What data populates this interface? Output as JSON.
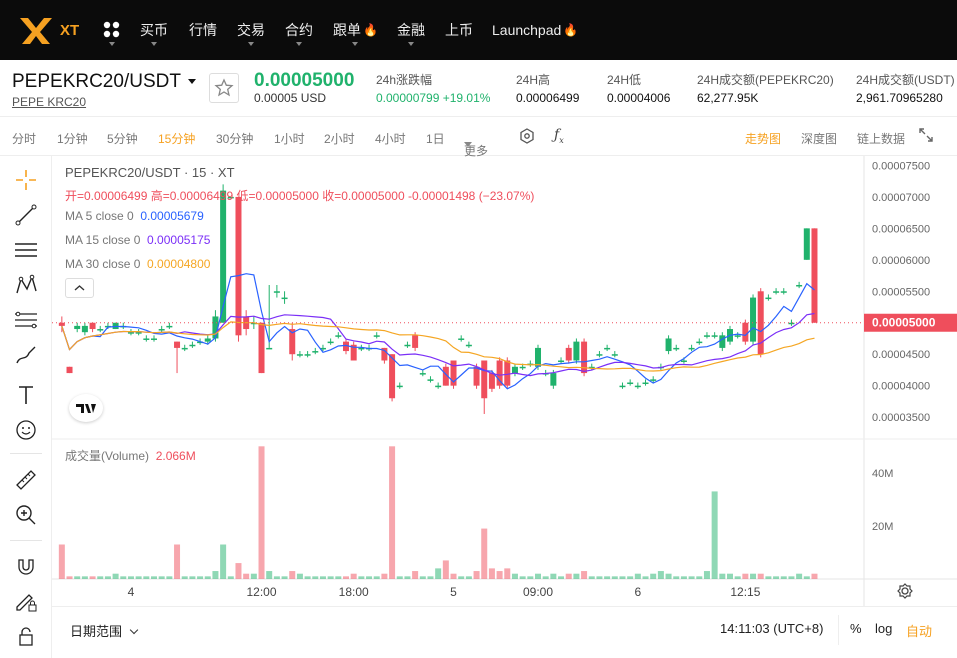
{
  "nav": {
    "brand": "XT",
    "items": [
      {
        "label": "买币",
        "has_dropdown": true
      },
      {
        "label": "行情",
        "has_dropdown": false
      },
      {
        "label": "交易",
        "has_dropdown": true,
        "active": true
      },
      {
        "label": "合约",
        "has_dropdown": true
      },
      {
        "label": "跟单",
        "has_dropdown": true,
        "fire": true
      },
      {
        "label": "金融",
        "has_dropdown": true
      },
      {
        "label": "上币",
        "has_dropdown": false
      },
      {
        "label": "Launchpad",
        "has_dropdown": false,
        "fire": true
      }
    ],
    "accent": "#f6a121"
  },
  "ticker": {
    "pair": "PEPEKRC20/USDT",
    "sub": "PEPE KRC20",
    "price": "0.00005000",
    "price_usd": "0.00005 USD",
    "change_label": "24h涨跌幅",
    "change_value": "0.00000799 +19.01%",
    "high_label": "24H高",
    "high_value": "0.00006499",
    "low_label": "24H低",
    "low_value": "0.00004006",
    "vol_label": "24H成交额(PEPEKRC20)",
    "vol_value": "62,277.95K",
    "amt_label": "24H成交额(USDT)",
    "amt_value": "2,961.70965280",
    "up_color": "#20b26c",
    "down_color": "#ef4e5c"
  },
  "toolbar": {
    "intervals": [
      "分时",
      "1分钟",
      "5分钟",
      "15分钟",
      "30分钟",
      "1小时",
      "2小时",
      "4小时",
      "1日",
      "更多"
    ],
    "active_interval": "15分钟",
    "views": [
      "走势图",
      "深度图",
      "链上数据"
    ],
    "active_view": "走势图"
  },
  "tools": [
    "crosshair-icon",
    "trend-line-icon",
    "horizontal-lines-icon",
    "pattern-icon",
    "fib-icon",
    "brush-icon",
    "text-icon",
    "emoji-icon",
    "ruler-icon",
    "zoom-in-icon",
    "magnet-icon",
    "lock-edit-icon",
    "lock-icon"
  ],
  "chart_legend": {
    "title": "PEPEKRC20/USDT · 15 · XT",
    "ohlc": "开=0.00006499 高=0.00006499 低=0.00005000 收=0.00005000 -0.00001498 (−23.07%)",
    "ma5_label": "MA 5 close 0",
    "ma5_value": "0.00005679",
    "ma15_label": "MA 15 close 0",
    "ma15_value": "0.00005175",
    "ma30_label": "MA 30 close 0",
    "ma30_value": "0.00004800",
    "volume_label": "成交量(Volume)",
    "volume_value": "2.066M",
    "ma5_color": "#2962ff",
    "ma15_color": "#7b2ff7",
    "ma30_color": "#f5a623",
    "last_price_tag": "0.00005000"
  },
  "chart_data": {
    "type": "candlestick",
    "price_ticks": [
      "0.00007500",
      "0.00007000",
      "0.00006500",
      "0.00006000",
      "0.00005500",
      "0.00005000",
      "0.00004500",
      "0.00004000",
      "0.00003500"
    ],
    "price_ylim": [
      3.2e-05,
      7.65e-05
    ],
    "volume_ticks": [
      "40M",
      "20M"
    ],
    "volume_ylim": [
      0,
      52
    ],
    "time_ticks": [
      "4",
      "12:00",
      "18:00",
      "5",
      "09:00",
      "6",
      "12:15"
    ],
    "time_tick_index": [
      9,
      26,
      38,
      51,
      62,
      75,
      89
    ],
    "candles": [
      {
        "o": 5.0,
        "c": 4.95,
        "h": 5.1,
        "l": 4.85,
        "v": 13
      },
      {
        "o": 4.3,
        "c": 4.2,
        "h": 4.3,
        "l": 4.2,
        "v": 1
      },
      {
        "o": 4.9,
        "c": 4.95,
        "h": 5.0,
        "l": 4.85,
        "v": 1
      },
      {
        "o": 4.85,
        "c": 4.95,
        "h": 5.0,
        "l": 4.8,
        "v": 1
      },
      {
        "o": 5.0,
        "c": 4.9,
        "h": 5.0,
        "l": 4.85,
        "v": 1
      },
      {
        "o": 4.9,
        "c": 4.9,
        "h": 4.95,
        "l": 4.85,
        "v": 1
      },
      {
        "o": 4.95,
        "c": 4.95,
        "h": 5.0,
        "l": 4.9,
        "v": 1
      },
      {
        "o": 4.9,
        "c": 5.0,
        "h": 5.0,
        "l": 4.9,
        "v": 2
      },
      {
        "o": 4.95,
        "c": 4.95,
        "h": 5.0,
        "l": 4.9,
        "v": 1
      },
      {
        "o": 4.85,
        "c": 4.85,
        "h": 4.9,
        "l": 4.8,
        "v": 1
      },
      {
        "o": 4.85,
        "c": 4.85,
        "h": 4.9,
        "l": 4.8,
        "v": 1
      },
      {
        "o": 4.75,
        "c": 4.75,
        "h": 4.8,
        "l": 4.7,
        "v": 1
      },
      {
        "o": 4.75,
        "c": 4.75,
        "h": 4.8,
        "l": 4.7,
        "v": 1
      },
      {
        "o": 4.9,
        "c": 4.9,
        "h": 4.95,
        "l": 4.85,
        "v": 1
      },
      {
        "o": 4.95,
        "c": 4.95,
        "h": 5.0,
        "l": 4.9,
        "v": 1
      },
      {
        "o": 4.7,
        "c": 4.6,
        "h": 4.7,
        "l": 4.2,
        "v": 13
      },
      {
        "o": 4.6,
        "c": 4.6,
        "h": 4.65,
        "l": 4.55,
        "v": 1
      },
      {
        "o": 4.65,
        "c": 4.65,
        "h": 4.7,
        "l": 4.6,
        "v": 1
      },
      {
        "o": 4.7,
        "c": 4.7,
        "h": 4.75,
        "l": 4.65,
        "v": 1
      },
      {
        "o": 4.7,
        "c": 4.75,
        "h": 4.8,
        "l": 4.65,
        "v": 1
      },
      {
        "o": 4.75,
        "c": 5.1,
        "h": 5.2,
        "l": 4.7,
        "v": 3
      },
      {
        "o": 5.0,
        "c": 7.1,
        "h": 7.2,
        "l": 5.0,
        "v": 13
      },
      {
        "o": 7.0,
        "c": 7.0,
        "h": 7.0,
        "l": 7.0,
        "v": 1
      },
      {
        "o": 7.0,
        "c": 4.8,
        "h": 7.0,
        "l": 4.7,
        "v": 6
      },
      {
        "o": 5.1,
        "c": 4.9,
        "h": 5.2,
        "l": 4.8,
        "v": 2
      },
      {
        "o": 5.0,
        "c": 5.0,
        "h": 5.1,
        "l": 4.9,
        "v": 2
      },
      {
        "o": 5.0,
        "c": 4.2,
        "h": 5.0,
        "l": 4.2,
        "v": 50
      },
      {
        "o": 4.6,
        "c": 4.6,
        "h": 5.6,
        "l": 4.6,
        "v": 3
      },
      {
        "o": 5.5,
        "c": 5.5,
        "h": 5.6,
        "l": 5.4,
        "v": 1
      },
      {
        "o": 5.4,
        "c": 5.4,
        "h": 5.5,
        "l": 5.3,
        "v": 1
      },
      {
        "o": 4.9,
        "c": 4.5,
        "h": 5.0,
        "l": 4.4,
        "v": 3
      },
      {
        "o": 4.5,
        "c": 4.5,
        "h": 4.55,
        "l": 4.45,
        "v": 2
      },
      {
        "o": 4.5,
        "c": 4.5,
        "h": 4.55,
        "l": 4.45,
        "v": 1
      },
      {
        "o": 4.55,
        "c": 4.55,
        "h": 4.6,
        "l": 4.5,
        "v": 1
      },
      {
        "o": 4.6,
        "c": 4.6,
        "h": 4.65,
        "l": 4.55,
        "v": 1
      },
      {
        "o": 4.7,
        "c": 4.7,
        "h": 4.75,
        "l": 4.65,
        "v": 1
      },
      {
        "o": 4.8,
        "c": 4.8,
        "h": 4.85,
        "l": 4.75,
        "v": 1
      },
      {
        "o": 4.7,
        "c": 4.55,
        "h": 4.75,
        "l": 4.5,
        "v": 1
      },
      {
        "o": 4.65,
        "c": 4.4,
        "h": 4.7,
        "l": 4.4,
        "v": 2
      },
      {
        "o": 4.6,
        "c": 4.6,
        "h": 4.65,
        "l": 4.55,
        "v": 1
      },
      {
        "o": 4.6,
        "c": 4.6,
        "h": 4.65,
        "l": 4.55,
        "v": 1
      },
      {
        "o": 4.8,
        "c": 4.8,
        "h": 4.85,
        "l": 4.75,
        "v": 1
      },
      {
        "o": 4.6,
        "c": 4.4,
        "h": 4.6,
        "l": 4.35,
        "v": 2
      },
      {
        "o": 4.5,
        "c": 3.8,
        "h": 4.5,
        "l": 3.75,
        "v": 50
      },
      {
        "o": 4.0,
        "c": 4.0,
        "h": 4.05,
        "l": 3.95,
        "v": 1
      },
      {
        "o": 4.65,
        "c": 4.65,
        "h": 4.7,
        "l": 4.6,
        "v": 1
      },
      {
        "o": 4.8,
        "c": 4.6,
        "h": 4.85,
        "l": 4.55,
        "v": 3
      },
      {
        "o": 4.2,
        "c": 4.2,
        "h": 4.25,
        "l": 4.15,
        "v": 1
      },
      {
        "o": 4.1,
        "c": 4.1,
        "h": 4.15,
        "l": 4.05,
        "v": 1
      },
      {
        "o": 4.0,
        "c": 4.0,
        "h": 4.05,
        "l": 3.95,
        "v": 4
      },
      {
        "o": 4.3,
        "c": 4.0,
        "h": 4.35,
        "l": 4.0,
        "v": 7
      },
      {
        "o": 4.4,
        "c": 4.0,
        "h": 4.4,
        "l": 3.95,
        "v": 2
      },
      {
        "o": 4.75,
        "c": 4.75,
        "h": 4.8,
        "l": 4.7,
        "v": 1
      },
      {
        "o": 4.65,
        "c": 4.65,
        "h": 4.7,
        "l": 4.6,
        "v": 1
      },
      {
        "o": 4.3,
        "c": 4.0,
        "h": 4.35,
        "l": 3.95,
        "v": 3
      },
      {
        "o": 4.4,
        "c": 3.8,
        "h": 4.4,
        "l": 3.55,
        "v": 19
      },
      {
        "o": 4.2,
        "c": 3.95,
        "h": 4.25,
        "l": 3.9,
        "v": 4
      },
      {
        "o": 4.4,
        "c": 4.0,
        "h": 4.45,
        "l": 3.95,
        "v": 3
      },
      {
        "o": 4.4,
        "c": 4.0,
        "h": 4.45,
        "l": 3.95,
        "v": 4
      },
      {
        "o": 4.2,
        "c": 4.3,
        "h": 4.35,
        "l": 4.15,
        "v": 2
      },
      {
        "o": 4.3,
        "c": 4.3,
        "h": 4.35,
        "l": 4.25,
        "v": 1
      },
      {
        "o": 4.35,
        "c": 4.35,
        "h": 4.4,
        "l": 4.3,
        "v": 1
      },
      {
        "o": 4.3,
        "c": 4.6,
        "h": 4.65,
        "l": 4.25,
        "v": 2
      },
      {
        "o": 4.2,
        "c": 4.2,
        "h": 4.25,
        "l": 4.15,
        "v": 1
      },
      {
        "o": 4.0,
        "c": 4.2,
        "h": 4.25,
        "l": 3.95,
        "v": 2
      },
      {
        "o": 4.4,
        "c": 4.4,
        "h": 4.45,
        "l": 4.35,
        "v": 1
      },
      {
        "o": 4.6,
        "c": 4.4,
        "h": 4.65,
        "l": 4.35,
        "v": 2
      },
      {
        "o": 4.4,
        "c": 4.7,
        "h": 4.75,
        "l": 4.35,
        "v": 2
      },
      {
        "o": 4.7,
        "c": 4.2,
        "h": 4.75,
        "l": 4.15,
        "v": 3
      },
      {
        "o": 4.3,
        "c": 4.3,
        "h": 4.35,
        "l": 4.25,
        "v": 1
      },
      {
        "o": 4.5,
        "c": 4.5,
        "h": 4.55,
        "l": 4.45,
        "v": 1
      },
      {
        "o": 4.6,
        "c": 4.6,
        "h": 4.65,
        "l": 4.55,
        "v": 1
      },
      {
        "o": 4.5,
        "c": 4.5,
        "h": 4.55,
        "l": 4.45,
        "v": 1
      },
      {
        "o": 4.0,
        "c": 4.0,
        "h": 4.05,
        "l": 3.95,
        "v": 1
      },
      {
        "o": 4.05,
        "c": 4.05,
        "h": 4.1,
        "l": 4.0,
        "v": 1
      },
      {
        "o": 4.0,
        "c": 4.0,
        "h": 4.05,
        "l": 3.95,
        "v": 2
      },
      {
        "o": 4.05,
        "c": 4.05,
        "h": 4.1,
        "l": 4.0,
        "v": 1
      },
      {
        "o": 4.1,
        "c": 4.1,
        "h": 4.15,
        "l": 4.05,
        "v": 2
      },
      {
        "o": 4.3,
        "c": 4.3,
        "h": 4.35,
        "l": 4.25,
        "v": 3
      },
      {
        "o": 4.55,
        "c": 4.75,
        "h": 4.8,
        "l": 4.5,
        "v": 2
      },
      {
        "o": 4.6,
        "c": 4.6,
        "h": 4.65,
        "l": 4.55,
        "v": 1
      },
      {
        "o": 4.4,
        "c": 4.4,
        "h": 4.45,
        "l": 4.35,
        "v": 1
      },
      {
        "o": 4.6,
        "c": 4.6,
        "h": 4.65,
        "l": 4.55,
        "v": 1
      },
      {
        "o": 4.7,
        "c": 4.7,
        "h": 4.75,
        "l": 4.65,
        "v": 1
      },
      {
        "o": 4.8,
        "c": 4.8,
        "h": 4.85,
        "l": 4.75,
        "v": 3
      },
      {
        "o": 4.8,
        "c": 4.8,
        "h": 4.85,
        "l": 4.75,
        "v": 33
      },
      {
        "o": 4.6,
        "c": 4.8,
        "h": 4.85,
        "l": 4.55,
        "v": 2
      },
      {
        "o": 4.7,
        "c": 4.9,
        "h": 4.95,
        "l": 4.65,
        "v": 2
      },
      {
        "o": 4.8,
        "c": 4.8,
        "h": 4.85,
        "l": 4.75,
        "v": 1
      },
      {
        "o": 5.0,
        "c": 4.7,
        "h": 5.05,
        "l": 4.65,
        "v": 2
      },
      {
        "o": 4.7,
        "c": 5.4,
        "h": 5.45,
        "l": 4.65,
        "v": 2
      },
      {
        "o": 5.5,
        "c": 4.5,
        "h": 5.55,
        "l": 4.45,
        "v": 2
      },
      {
        "o": 5.4,
        "c": 5.4,
        "h": 5.45,
        "l": 5.35,
        "v": 1
      },
      {
        "o": 5.5,
        "c": 5.5,
        "h": 5.55,
        "l": 5.45,
        "v": 1
      },
      {
        "o": 5.5,
        "c": 5.5,
        "h": 5.55,
        "l": 5.45,
        "v": 1
      },
      {
        "o": 5.0,
        "c": 5.0,
        "h": 5.05,
        "l": 4.95,
        "v": 1
      },
      {
        "o": 5.6,
        "c": 5.6,
        "h": 5.65,
        "l": 5.55,
        "v": 2
      },
      {
        "o": 6.0,
        "c": 6.5,
        "h": 6.5,
        "l": 6.0,
        "v": 1
      },
      {
        "o": 6.5,
        "c": 5.0,
        "h": 6.5,
        "l": 5.0,
        "v": 2
      }
    ]
  },
  "bottom": {
    "date_range": "日期范围",
    "clock": "14:11:03 (UTC+8)",
    "percent": "%",
    "log": "log",
    "auto": "自动"
  }
}
